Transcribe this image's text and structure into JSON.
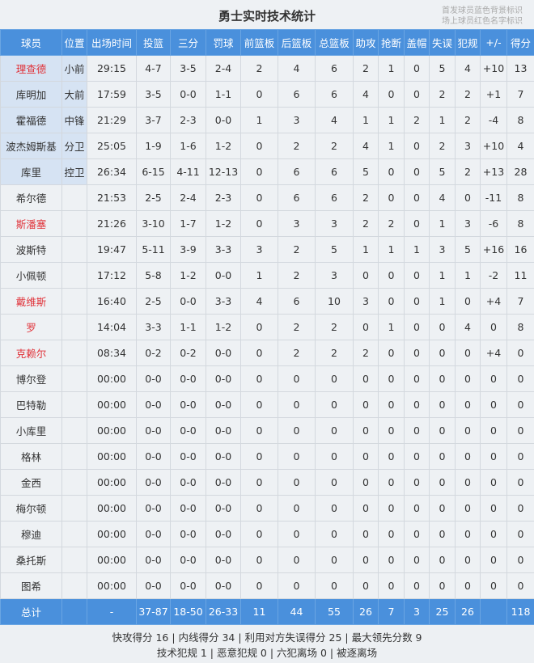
{
  "title": "勇士实时技术统计",
  "legend": [
    "首发球员蓝色背景标识",
    "场上球员红色名字标识"
  ],
  "colors": {
    "header": "#4a90dc",
    "starter_bg": "#d6e3f3",
    "on_court_name": "#e0333a"
  },
  "columns": [
    "球员",
    "位置",
    "出场时间",
    "投篮",
    "三分",
    "罚球",
    "前篮板",
    "后篮板",
    "总篮板",
    "助攻",
    "抢断",
    "盖帽",
    "失误",
    "犯规",
    "+/-",
    "得分"
  ],
  "players": [
    {
      "starter": true,
      "on_court": true,
      "cells": [
        "理查德",
        "小前",
        "29:15",
        "4-7",
        "3-5",
        "2-4",
        "2",
        "4",
        "6",
        "2",
        "1",
        "0",
        "5",
        "4",
        "+10",
        "13"
      ]
    },
    {
      "starter": true,
      "on_court": false,
      "cells": [
        "库明加",
        "大前",
        "17:59",
        "3-5",
        "0-0",
        "1-1",
        "0",
        "6",
        "6",
        "4",
        "0",
        "0",
        "2",
        "2",
        "+1",
        "7"
      ]
    },
    {
      "starter": true,
      "on_court": false,
      "cells": [
        "霍福德",
        "中锋",
        "21:29",
        "3-7",
        "2-3",
        "0-0",
        "1",
        "3",
        "4",
        "1",
        "1",
        "2",
        "1",
        "2",
        "-4",
        "8"
      ]
    },
    {
      "starter": true,
      "on_court": false,
      "cells": [
        "波杰姆斯基",
        "分卫",
        "25:05",
        "1-9",
        "1-6",
        "1-2",
        "0",
        "2",
        "2",
        "4",
        "1",
        "0",
        "2",
        "3",
        "+10",
        "4"
      ]
    },
    {
      "starter": true,
      "on_court": false,
      "cells": [
        "库里",
        "控卫",
        "26:34",
        "6-15",
        "4-11",
        "12-13",
        "0",
        "6",
        "6",
        "5",
        "0",
        "0",
        "5",
        "2",
        "+13",
        "28"
      ]
    },
    {
      "starter": false,
      "on_court": false,
      "cells": [
        "希尔德",
        "",
        "21:53",
        "2-5",
        "2-4",
        "2-3",
        "0",
        "6",
        "6",
        "2",
        "0",
        "0",
        "4",
        "0",
        "-11",
        "8"
      ]
    },
    {
      "starter": false,
      "on_court": true,
      "cells": [
        "斯潘塞",
        "",
        "21:26",
        "3-10",
        "1-7",
        "1-2",
        "0",
        "3",
        "3",
        "2",
        "2",
        "0",
        "1",
        "3",
        "-6",
        "8"
      ]
    },
    {
      "starter": false,
      "on_court": false,
      "cells": [
        "波斯特",
        "",
        "19:47",
        "5-11",
        "3-9",
        "3-3",
        "3",
        "2",
        "5",
        "1",
        "1",
        "1",
        "3",
        "5",
        "+16",
        "16"
      ]
    },
    {
      "starter": false,
      "on_court": false,
      "cells": [
        "小佩顿",
        "",
        "17:12",
        "5-8",
        "1-2",
        "0-0",
        "1",
        "2",
        "3",
        "0",
        "0",
        "0",
        "1",
        "1",
        "-2",
        "11"
      ]
    },
    {
      "starter": false,
      "on_court": true,
      "cells": [
        "戴维斯",
        "",
        "16:40",
        "2-5",
        "0-0",
        "3-3",
        "4",
        "6",
        "10",
        "3",
        "0",
        "0",
        "1",
        "0",
        "+4",
        "7"
      ]
    },
    {
      "starter": false,
      "on_court": true,
      "cells": [
        "罗",
        "",
        "14:04",
        "3-3",
        "1-1",
        "1-2",
        "0",
        "2",
        "2",
        "0",
        "1",
        "0",
        "0",
        "4",
        "0",
        "8"
      ]
    },
    {
      "starter": false,
      "on_court": true,
      "cells": [
        "克赖尔",
        "",
        "08:34",
        "0-2",
        "0-2",
        "0-0",
        "0",
        "2",
        "2",
        "2",
        "0",
        "0",
        "0",
        "0",
        "+4",
        "0"
      ]
    },
    {
      "starter": false,
      "on_court": false,
      "cells": [
        "博尔登",
        "",
        "00:00",
        "0-0",
        "0-0",
        "0-0",
        "0",
        "0",
        "0",
        "0",
        "0",
        "0",
        "0",
        "0",
        "0",
        "0"
      ]
    },
    {
      "starter": false,
      "on_court": false,
      "cells": [
        "巴特勒",
        "",
        "00:00",
        "0-0",
        "0-0",
        "0-0",
        "0",
        "0",
        "0",
        "0",
        "0",
        "0",
        "0",
        "0",
        "0",
        "0"
      ]
    },
    {
      "starter": false,
      "on_court": false,
      "cells": [
        "小库里",
        "",
        "00:00",
        "0-0",
        "0-0",
        "0-0",
        "0",
        "0",
        "0",
        "0",
        "0",
        "0",
        "0",
        "0",
        "0",
        "0"
      ]
    },
    {
      "starter": false,
      "on_court": false,
      "cells": [
        "格林",
        "",
        "00:00",
        "0-0",
        "0-0",
        "0-0",
        "0",
        "0",
        "0",
        "0",
        "0",
        "0",
        "0",
        "0",
        "0",
        "0"
      ]
    },
    {
      "starter": false,
      "on_court": false,
      "cells": [
        "金西",
        "",
        "00:00",
        "0-0",
        "0-0",
        "0-0",
        "0",
        "0",
        "0",
        "0",
        "0",
        "0",
        "0",
        "0",
        "0",
        "0"
      ]
    },
    {
      "starter": false,
      "on_court": false,
      "cells": [
        "梅尔顿",
        "",
        "00:00",
        "0-0",
        "0-0",
        "0-0",
        "0",
        "0",
        "0",
        "0",
        "0",
        "0",
        "0",
        "0",
        "0",
        "0"
      ]
    },
    {
      "starter": false,
      "on_court": false,
      "cells": [
        "穆迪",
        "",
        "00:00",
        "0-0",
        "0-0",
        "0-0",
        "0",
        "0",
        "0",
        "0",
        "0",
        "0",
        "0",
        "0",
        "0",
        "0"
      ]
    },
    {
      "starter": false,
      "on_court": false,
      "cells": [
        "桑托斯",
        "",
        "00:00",
        "0-0",
        "0-0",
        "0-0",
        "0",
        "0",
        "0",
        "0",
        "0",
        "0",
        "0",
        "0",
        "0",
        "0"
      ]
    },
    {
      "starter": false,
      "on_court": false,
      "cells": [
        "图希",
        "",
        "00:00",
        "0-0",
        "0-0",
        "0-0",
        "0",
        "0",
        "0",
        "0",
        "0",
        "0",
        "0",
        "0",
        "0",
        "0"
      ]
    }
  ],
  "totals": [
    "总计",
    "",
    "-",
    "37-87",
    "18-50",
    "26-33",
    "11",
    "44",
    "55",
    "26",
    "7",
    "3",
    "25",
    "26",
    "",
    "118"
  ],
  "footer": {
    "line1": "快攻得分 16 | 内线得分 34 | 利用对方失误得分 25 | 最大领先分数 9",
    "line2": "技术犯规 1 | 恶意犯规 0 | 六犯离场 0 | 被逐离场"
  }
}
